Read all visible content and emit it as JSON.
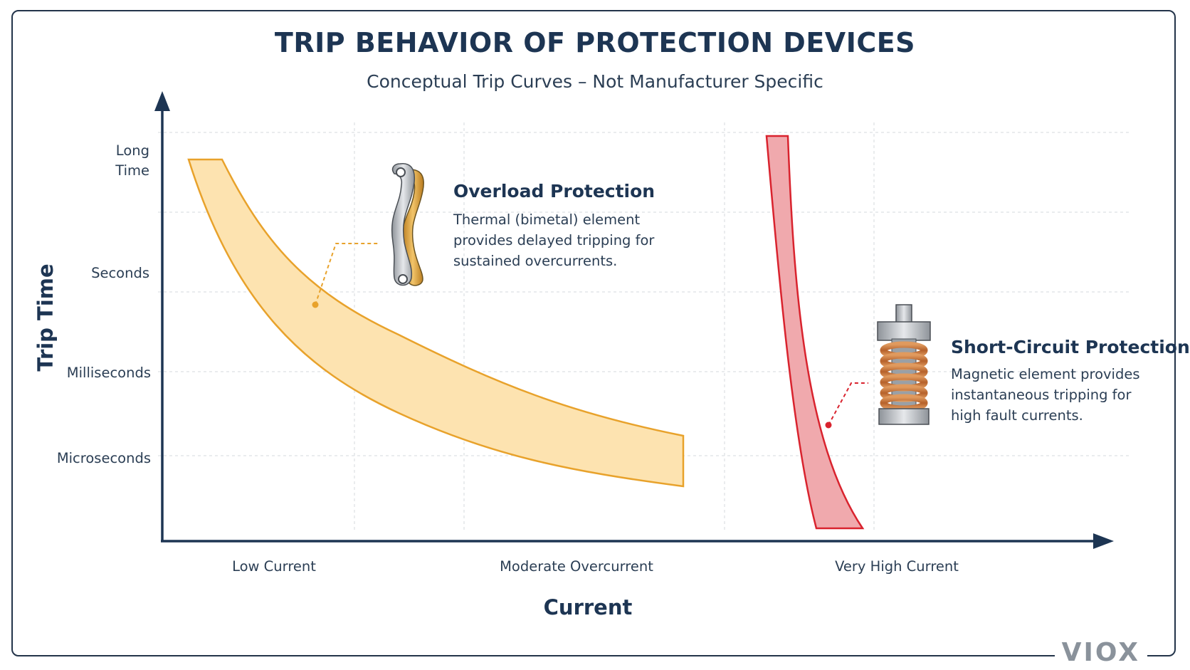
{
  "chart_data": {
    "type": "area",
    "title": "TRIP BEHAVIOR OF PROTECTION DEVICES",
    "subtitle": "Conceptual Trip Curves – Not Manufacturer Specific",
    "xlabel": "Current",
    "ylabel": "Trip Time",
    "categories": [
      "Low Current",
      "Moderate Overcurrent",
      "Very High Current"
    ],
    "y_ticks": [
      "Long Time",
      "Seconds",
      "Milliseconds",
      "Microseconds"
    ],
    "grid": true,
    "series": [
      {
        "name": "Overload Protection",
        "color": "#e8a22b",
        "fill": "#fde3b0",
        "description_lines": [
          "Thermal (bimetal) element",
          "provides delayed tripping for",
          "sustained overcurrents."
        ],
        "icon": "bimetal-strip-icon"
      },
      {
        "name": "Short-Circuit Protection",
        "color": "#d9232e",
        "fill": "#f0a9ad",
        "description_lines": [
          "Magnetic element provides",
          "instantaneous tripping for",
          "high fault currents."
        ],
        "icon": "magnetic-coil-icon"
      }
    ]
  },
  "brand": "VIOX"
}
